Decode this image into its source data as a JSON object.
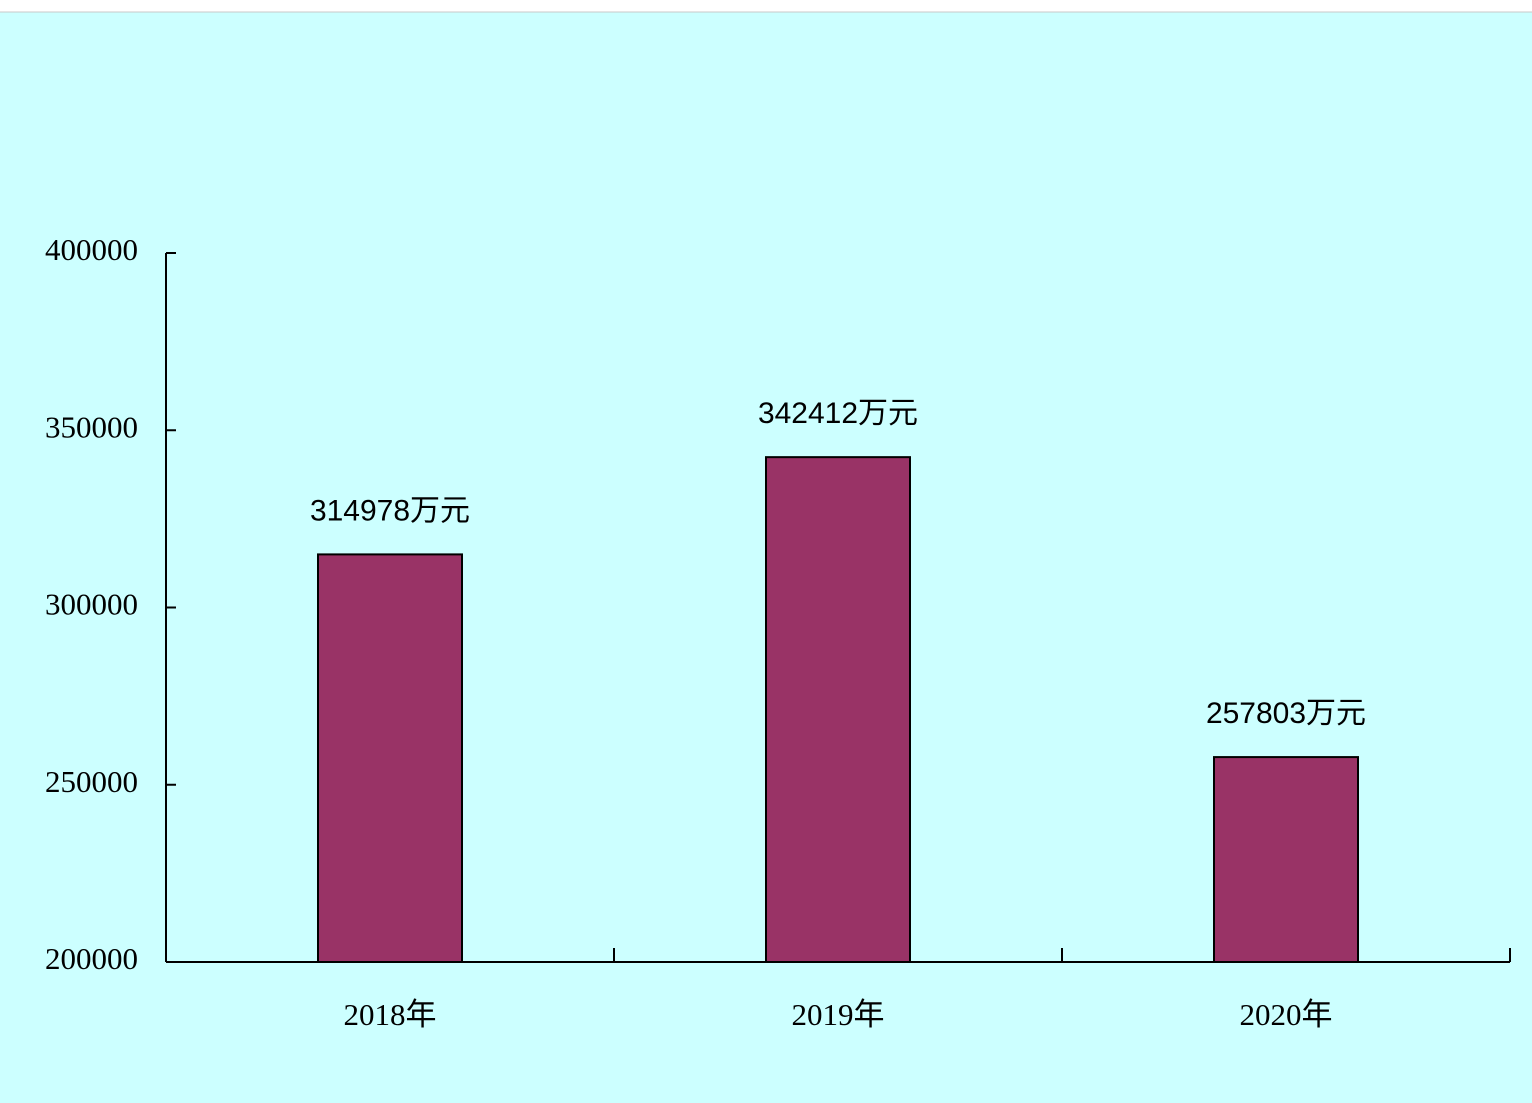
{
  "chart_data": {
    "type": "bar",
    "categories": [
      "2018年",
      "2019年",
      "2020年"
    ],
    "values": [
      314978,
      342412,
      257803
    ],
    "value_labels": [
      "314978万元",
      "342412万元",
      "257803万元"
    ],
    "color": "#993366",
    "ylim": [
      200000,
      400000
    ],
    "yticks": [
      200000,
      250000,
      300000,
      350000,
      400000
    ],
    "grid": false
  }
}
